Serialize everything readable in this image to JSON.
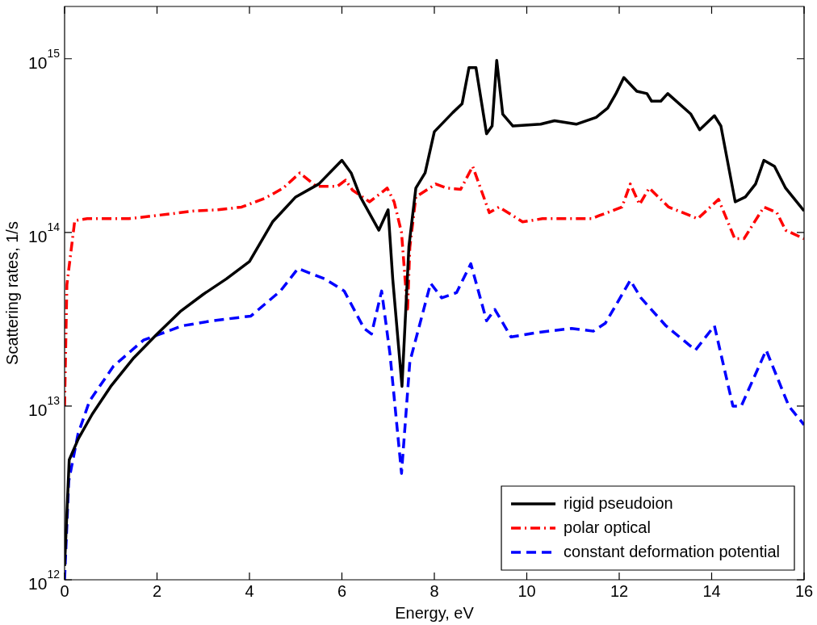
{
  "chart_data": {
    "type": "line",
    "xlabel": "Energy, eV",
    "ylabel": "Scattering rates, 1/s",
    "log": "y",
    "xlim": [
      0,
      16
    ],
    "xticks": [
      0,
      2,
      4,
      6,
      8,
      10,
      12,
      14,
      16
    ],
    "ylim": [
      1000000000000.0,
      2000000000000000.0
    ],
    "yticks": [
      {
        "value": 1000000000000.0,
        "label": "10$^{12}$"
      },
      {
        "value": 10000000000000.0,
        "label": "10$^{13}$"
      },
      {
        "value": 100000000000000.0,
        "label": "10$^{14}$"
      },
      {
        "value": 1000000000000000.0,
        "label": "10$^{15}$"
      }
    ],
    "legend": "bottom right",
    "grid": false,
    "marker": "none",
    "series": [
      {
        "name": "rigid pseudoion",
        "color": "#000000",
        "line_style": "solid",
        "x": [
          0.0,
          0.1,
          0.3,
          0.6,
          1.0,
          1.5,
          2.0,
          2.5,
          3.0,
          3.5,
          4.0,
          4.5,
          5.0,
          5.5,
          6.0,
          6.2,
          6.4,
          6.8,
          7.0,
          7.1,
          7.3,
          7.45,
          7.6,
          7.8,
          8.0,
          8.4,
          8.6,
          8.75,
          8.9,
          9.13,
          9.25,
          9.35,
          9.48,
          9.7,
          10.3,
          10.6,
          11.07,
          11.5,
          11.75,
          11.93,
          12.1,
          12.38,
          12.6,
          12.7,
          12.9,
          13.05,
          13.55,
          13.74,
          14.06,
          14.2,
          14.51,
          14.73,
          14.95,
          15.13,
          15.36,
          15.6,
          16.0
        ],
        "values": [
          1200000000000.0,
          4900000000000.0,
          6500000000000.0,
          9000000000000.0,
          13000000000000.0,
          19000000000000.0,
          26000000000000.0,
          35000000000000.0,
          44000000000000.0,
          54000000000000.0,
          68000000000000.0,
          115000000000000.0,
          160000000000000.0,
          190000000000000.0,
          260000000000000.0,
          220000000000000.0,
          160000000000000.0,
          103000000000000.0,
          135000000000000.0,
          54000000000000.0,
          13000000000000.0,
          83000000000000.0,
          180000000000000.0,
          220000000000000.0,
          380000000000000.0,
          490000000000000.0,
          550000000000000.0,
          890000000000000.0,
          890000000000000.0,
          370000000000000.0,
          410000000000000.0,
          980000000000000.0,
          480000000000000.0,
          410000000000000.0,
          420000000000000.0,
          440000000000000.0,
          420000000000000.0,
          460000000000000.0,
          520000000000000.0,
          630000000000000.0,
          780000000000000.0,
          650000000000000.0,
          630000000000000.0,
          570000000000000.0,
          570000000000000.0,
          630000000000000.0,
          480000000000000.0,
          390000000000000.0,
          470000000000000.0,
          410000000000000.0,
          150000000000000.0,
          160000000000000.0,
          190000000000000.0,
          260000000000000.0,
          240000000000000.0,
          180000000000000.0,
          133000000000000.0
        ]
      },
      {
        "name": "polar optical",
        "color": "#ff0000",
        "line_style": "dashdot",
        "x": [
          0.0,
          0.05,
          0.22,
          0.49,
          1.39,
          2.3,
          2.8,
          3.32,
          3.83,
          4.35,
          4.73,
          5.09,
          5.45,
          5.9,
          6.08,
          6.23,
          6.6,
          6.98,
          7.13,
          7.29,
          7.42,
          7.47,
          7.6,
          8.03,
          8.27,
          8.57,
          8.83,
          9.19,
          9.4,
          9.91,
          10.34,
          10.9,
          11.4,
          11.57,
          12.06,
          12.24,
          12.44,
          12.65,
          13.07,
          13.7,
          14.15,
          14.5,
          14.7,
          15.13,
          15.41,
          15.6,
          16.0
        ],
        "values": [
          10000000000000.0,
          50000000000000.0,
          117000000000000.0,
          120000000000000.0,
          120000000000000.0,
          128000000000000.0,
          133000000000000.0,
          135000000000000.0,
          140000000000000.0,
          158000000000000.0,
          180000000000000.0,
          220000000000000.0,
          184000000000000.0,
          184000000000000.0,
          200000000000000.0,
          175000000000000.0,
          150000000000000.0,
          180000000000000.0,
          150000000000000.0,
          100000000000000.0,
          35000000000000.0,
          82000000000000.0,
          160000000000000.0,
          190000000000000.0,
          180000000000000.0,
          177000000000000.0,
          240000000000000.0,
          130000000000000.0,
          140000000000000.0,
          115000000000000.0,
          120000000000000.0,
          120000000000000.0,
          120000000000000.0,
          125000000000000.0,
          140000000000000.0,
          190000000000000.0,
          145000000000000.0,
          180000000000000.0,
          140000000000000.0,
          120000000000000.0,
          155000000000000.0,
          92000000000000.0,
          92000000000000.0,
          140000000000000.0,
          130000000000000.0,
          103000000000000.0,
          92000000000000.0
        ]
      },
      {
        "name": "constant deformation potential",
        "color": "#0000ff",
        "line_style": "dashed",
        "x": [
          0.0,
          0.09,
          0.29,
          0.54,
          1.06,
          1.71,
          2.55,
          3.2,
          4.03,
          4.67,
          5.05,
          5.63,
          6.05,
          6.48,
          6.64,
          6.86,
          7.04,
          7.29,
          7.47,
          7.92,
          8.16,
          8.48,
          8.79,
          9.13,
          9.31,
          9.66,
          10.22,
          10.97,
          11.44,
          11.7,
          12.24,
          12.47,
          13.01,
          13.65,
          14.06,
          14.46,
          14.64,
          15.18,
          15.67,
          16.0
        ],
        "values": [
          1000000000000.0,
          3700000000000.0,
          6900000000000.0,
          10700000000000.0,
          17000000000000.0,
          24000000000000.0,
          29000000000000.0,
          31000000000000.0,
          33000000000000.0,
          46000000000000.0,
          62000000000000.0,
          54000000000000.0,
          46000000000000.0,
          28000000000000.0,
          26000000000000.0,
          46000000000000.0,
          20000000000000.0,
          4100000000000.0,
          18000000000000.0,
          51000000000000.0,
          42000000000000.0,
          45000000000000.0,
          66000000000000.0,
          31000000000000.0,
          36000000000000.0,
          25000000000000.0,
          26500000000000.0,
          28000000000000.0,
          27000000000000.0,
          30000000000000.0,
          53000000000000.0,
          42000000000000.0,
          29000000000000.0,
          21000000000000.0,
          29000000000000.0,
          10000000000000.0,
          10000000000000.0,
          21000000000000.0,
          10000000000000.0,
          7800000000000.0
        ]
      }
    ]
  }
}
